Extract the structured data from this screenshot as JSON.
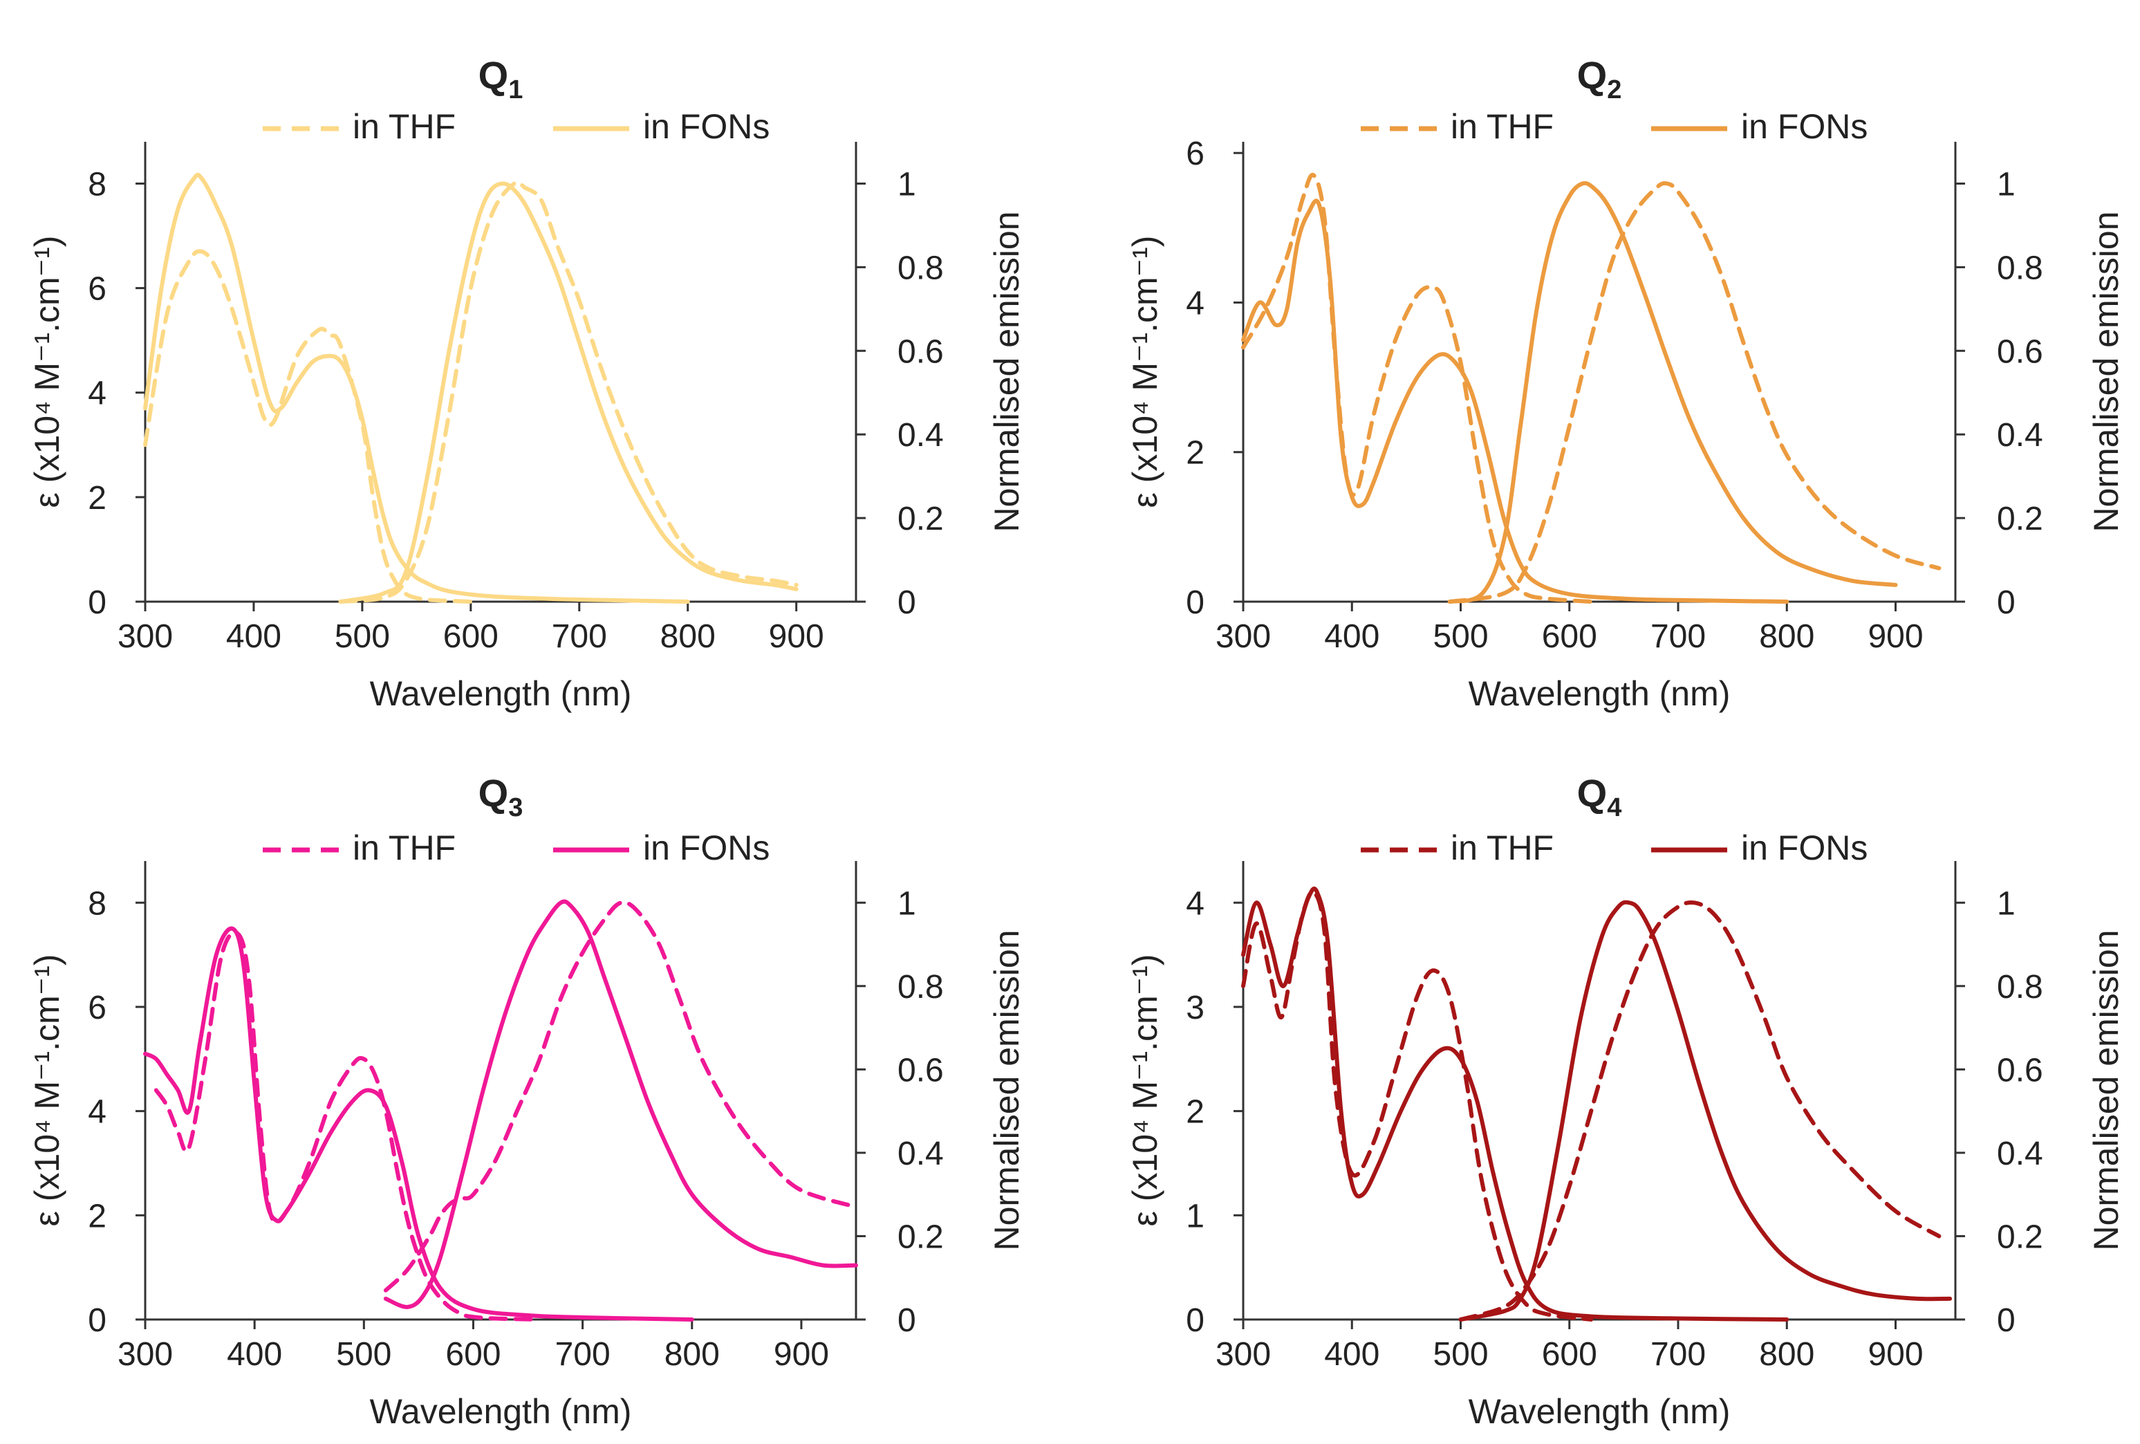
{
  "chart_data": [
    {
      "type": "line",
      "title": "Q",
      "subscript": "1",
      "color": "#fcd986",
      "xlabel": "Wavelength (nm)",
      "ylabel_left": "ε (x10⁴ M⁻¹.cm⁻¹)",
      "ylabel_right": "Normalised emission",
      "xlim": [
        300,
        955
      ],
      "ylim_left": [
        0,
        8.8
      ],
      "ylim_right": [
        0,
        1.1
      ],
      "xticks": [
        "300",
        "400",
        "500",
        "600",
        "700",
        "800",
        "900"
      ],
      "yticks_left": [
        "0",
        "2",
        "4",
        "6",
        "8"
      ],
      "yticks_right": [
        "0",
        "0.2",
        "0.4",
        "0.6",
        "0.8",
        "1"
      ],
      "legend": [
        "in THF",
        "in FONs"
      ],
      "series": [
        {
          "name": "in THF",
          "kind": "absorption",
          "style": "dashed",
          "x": [
            300,
            320,
            340,
            352,
            365,
            380,
            400,
            410,
            420,
            440,
            460,
            470,
            480,
            500,
            510,
            520,
            530,
            540,
            555,
            575,
            600
          ],
          "y": [
            3.0,
            5.5,
            6.5,
            6.7,
            6.4,
            5.6,
            4.2,
            3.5,
            3.5,
            4.7,
            5.2,
            5.1,
            4.9,
            3.4,
            2.0,
            0.9,
            0.4,
            0.15,
            0.05,
            0.02,
            0.0
          ]
        },
        {
          "name": "in FONs",
          "kind": "absorption",
          "style": "solid",
          "x": [
            300,
            315,
            330,
            345,
            352,
            365,
            380,
            400,
            415,
            425,
            440,
            455,
            470,
            480,
            490,
            500,
            510,
            520,
            530,
            545,
            560,
            580,
            620,
            680,
            750,
            800
          ],
          "y": [
            3.7,
            6.0,
            7.5,
            8.1,
            8.1,
            7.6,
            6.8,
            5.0,
            3.8,
            3.7,
            4.2,
            4.6,
            4.7,
            4.6,
            4.2,
            3.5,
            2.5,
            1.6,
            1.0,
            0.55,
            0.35,
            0.2,
            0.1,
            0.05,
            0.02,
            0.0
          ]
        },
        {
          "name": "in THF",
          "kind": "emission",
          "style": "dashed",
          "x": [
            480,
            520,
            540,
            560,
            580,
            600,
            620,
            640,
            650,
            665,
            680,
            700,
            720,
            740,
            760,
            780,
            800,
            820,
            850,
            880,
            900
          ],
          "y": [
            0.0,
            0.01,
            0.05,
            0.18,
            0.45,
            0.75,
            0.93,
            1.0,
            0.99,
            0.96,
            0.85,
            0.72,
            0.56,
            0.42,
            0.3,
            0.2,
            0.12,
            0.08,
            0.06,
            0.05,
            0.04
          ]
        },
        {
          "name": "in FONs",
          "kind": "emission",
          "style": "solid",
          "x": [
            480,
            520,
            540,
            560,
            580,
            600,
            615,
            630,
            645,
            660,
            680,
            700,
            720,
            740,
            760,
            780,
            800,
            820,
            850,
            880,
            900
          ],
          "y": [
            0.0,
            0.02,
            0.07,
            0.3,
            0.6,
            0.85,
            0.97,
            1.0,
            0.97,
            0.9,
            0.78,
            0.62,
            0.46,
            0.33,
            0.23,
            0.15,
            0.1,
            0.07,
            0.05,
            0.04,
            0.03
          ]
        }
      ]
    },
    {
      "type": "line",
      "title": "Q",
      "subscript": "2",
      "color": "#ec9b3f",
      "xlabel": "Wavelength (nm)",
      "ylabel_left": "ε (x10⁴ M⁻¹.cm⁻¹)",
      "ylabel_right": "Normalised emission",
      "xlim": [
        300,
        955
      ],
      "ylim_left": [
        0,
        6.15
      ],
      "ylim_right": [
        0,
        1.1
      ],
      "xticks": [
        "300",
        "400",
        "500",
        "600",
        "700",
        "800",
        "900"
      ],
      "yticks_left": [
        "0",
        "2",
        "4",
        "6"
      ],
      "yticks_right": [
        "0",
        "0.2",
        "0.4",
        "0.6",
        "0.8",
        "1"
      ],
      "legend": [
        "in THF",
        "in FONs"
      ],
      "series": [
        {
          "name": "in THF",
          "kind": "absorption",
          "style": "dashed",
          "x": [
            300,
            320,
            340,
            355,
            365,
            375,
            385,
            395,
            405,
            420,
            440,
            460,
            475,
            485,
            500,
            515,
            530,
            545,
            560,
            580,
            620
          ],
          "y": [
            3.4,
            3.9,
            4.6,
            5.4,
            5.7,
            5.1,
            3.2,
            1.7,
            1.5,
            2.5,
            3.5,
            4.1,
            4.2,
            4.0,
            3.2,
            1.9,
            0.8,
            0.3,
            0.1,
            0.04,
            0.0
          ]
        },
        {
          "name": "in FONs",
          "kind": "absorption",
          "style": "solid",
          "x": [
            300,
            315,
            330,
            340,
            350,
            360,
            370,
            380,
            390,
            400,
            410,
            420,
            440,
            460,
            480,
            495,
            510,
            525,
            540,
            555,
            570,
            600,
            650,
            700,
            800
          ],
          "y": [
            3.5,
            4.0,
            3.7,
            3.9,
            4.8,
            5.2,
            5.3,
            4.3,
            2.2,
            1.4,
            1.3,
            1.6,
            2.4,
            3.0,
            3.3,
            3.2,
            2.8,
            2.0,
            1.1,
            0.5,
            0.25,
            0.1,
            0.04,
            0.02,
            0.0
          ]
        },
        {
          "name": "in THF",
          "kind": "emission",
          "style": "dashed",
          "x": [
            490,
            540,
            560,
            580,
            600,
            620,
            640,
            660,
            680,
            690,
            700,
            720,
            740,
            760,
            780,
            800,
            830,
            860,
            900,
            940
          ],
          "y": [
            0.0,
            0.02,
            0.08,
            0.22,
            0.42,
            0.63,
            0.82,
            0.93,
            0.99,
            1.0,
            0.98,
            0.9,
            0.78,
            0.62,
            0.47,
            0.35,
            0.24,
            0.17,
            0.11,
            0.08
          ]
        },
        {
          "name": "in FONs",
          "kind": "emission",
          "style": "solid",
          "x": [
            490,
            520,
            540,
            555,
            570,
            585,
            600,
            612,
            622,
            635,
            650,
            670,
            690,
            710,
            730,
            760,
            790,
            820,
            860,
            900
          ],
          "y": [
            0.0,
            0.02,
            0.15,
            0.42,
            0.7,
            0.88,
            0.97,
            1.0,
            0.99,
            0.95,
            0.87,
            0.73,
            0.58,
            0.44,
            0.33,
            0.2,
            0.12,
            0.08,
            0.05,
            0.04
          ]
        }
      ]
    },
    {
      "type": "line",
      "title": "Q",
      "subscript": "3",
      "color": "#f01896",
      "xlabel": "Wavelength (nm)",
      "ylabel_left": "ε (x10⁴ M⁻¹.cm⁻¹)",
      "ylabel_right": "Normalised emission",
      "xlim": [
        300,
        950
      ],
      "ylim_left": [
        0,
        8.8
      ],
      "ylim_right": [
        0,
        1.1
      ],
      "xticks": [
        "300",
        "400",
        "500",
        "600",
        "700",
        "800",
        "900"
      ],
      "yticks_left": [
        "0",
        "2",
        "4",
        "6",
        "8"
      ],
      "yticks_right": [
        "0",
        "0.2",
        "0.4",
        "0.6",
        "0.8",
        "1"
      ],
      "legend": [
        "in THF",
        "in FONs"
      ],
      "series": [
        {
          "name": "in THF",
          "kind": "absorption",
          "style": "dashed",
          "x": [
            310,
            320,
            330,
            340,
            355,
            370,
            385,
            395,
            405,
            415,
            430,
            450,
            470,
            490,
            500,
            510,
            520,
            530,
            540,
            550,
            560,
            575,
            590,
            600,
            620,
            660
          ],
          "y": [
            4.4,
            4.1,
            3.6,
            3.3,
            5.0,
            7.0,
            7.4,
            6.5,
            3.8,
            2.0,
            2.1,
            3.0,
            4.2,
            4.9,
            5.0,
            4.7,
            4.0,
            2.9,
            1.9,
            1.2,
            0.7,
            0.3,
            0.1,
            0.05,
            0.02,
            0.0
          ]
        },
        {
          "name": "in FONs",
          "kind": "absorption",
          "style": "solid",
          "x": [
            300,
            310,
            320,
            330,
            340,
            350,
            365,
            380,
            390,
            400,
            410,
            420,
            430,
            450,
            470,
            490,
            505,
            520,
            535,
            550,
            570,
            600,
            650,
            700,
            800
          ],
          "y": [
            5.1,
            5.0,
            4.7,
            4.4,
            4.0,
            5.3,
            7.0,
            7.5,
            6.8,
            4.5,
            2.4,
            1.9,
            2.1,
            2.8,
            3.6,
            4.2,
            4.4,
            4.1,
            3.0,
            1.6,
            0.6,
            0.2,
            0.08,
            0.04,
            0.0
          ]
        },
        {
          "name": "in THF",
          "kind": "emission",
          "style": "dashed",
          "x": [
            520,
            540,
            560,
            570,
            580,
            590,
            600,
            620,
            640,
            660,
            680,
            700,
            720,
            735,
            750,
            770,
            790,
            810,
            840,
            870,
            900,
            950
          ],
          "y": [
            0.07,
            0.12,
            0.2,
            0.25,
            0.28,
            0.29,
            0.3,
            0.38,
            0.5,
            0.62,
            0.77,
            0.88,
            0.96,
            1.0,
            0.98,
            0.9,
            0.76,
            0.62,
            0.48,
            0.38,
            0.31,
            0.27
          ]
        },
        {
          "name": "in FONs",
          "kind": "emission",
          "style": "solid",
          "x": [
            520,
            540,
            555,
            570,
            590,
            610,
            630,
            650,
            665,
            680,
            690,
            705,
            720,
            740,
            760,
            780,
            800,
            830,
            860,
            890,
            920,
            950
          ],
          "y": [
            0.05,
            0.03,
            0.06,
            0.15,
            0.35,
            0.56,
            0.74,
            0.88,
            0.95,
            1.0,
            0.99,
            0.93,
            0.82,
            0.67,
            0.52,
            0.4,
            0.3,
            0.22,
            0.17,
            0.15,
            0.13,
            0.13
          ]
        }
      ]
    },
    {
      "type": "line",
      "title": "Q",
      "subscript": "4",
      "color": "#a71516",
      "xlabel": "Wavelength (nm)",
      "ylabel_left": "ε (x10⁴ M⁻¹.cm⁻¹)",
      "ylabel_right": "Normalised emission",
      "xlim": [
        300,
        955
      ],
      "ylim_left": [
        0,
        4.4
      ],
      "ylim_right": [
        0,
        1.1
      ],
      "xticks": [
        "300",
        "400",
        "500",
        "600",
        "700",
        "800",
        "900"
      ],
      "yticks_left": [
        "0",
        "1",
        "2",
        "3",
        "4"
      ],
      "yticks_right": [
        "0",
        "0.2",
        "0.4",
        "0.6",
        "0.8",
        "1"
      ],
      "legend": [
        "in THF",
        "in FONs"
      ],
      "series": [
        {
          "name": "in THF",
          "kind": "absorption",
          "style": "dashed",
          "x": [
            300,
            312,
            325,
            335,
            345,
            355,
            365,
            375,
            385,
            400,
            420,
            440,
            460,
            475,
            490,
            505,
            520,
            540,
            560,
            580,
            620
          ],
          "y": [
            3.2,
            3.8,
            3.3,
            2.9,
            3.4,
            3.9,
            4.1,
            3.7,
            2.2,
            1.4,
            1.7,
            2.4,
            3.1,
            3.35,
            3.1,
            2.3,
            1.3,
            0.5,
            0.15,
            0.05,
            0.0
          ]
        },
        {
          "name": "in FONs",
          "kind": "absorption",
          "style": "solid",
          "x": [
            300,
            312,
            325,
            337,
            350,
            360,
            368,
            378,
            390,
            400,
            410,
            425,
            445,
            465,
            485,
            500,
            515,
            530,
            545,
            560,
            580,
            620,
            700,
            800
          ],
          "y": [
            3.5,
            4.0,
            3.6,
            3.2,
            3.7,
            4.05,
            4.1,
            3.6,
            2.0,
            1.3,
            1.2,
            1.5,
            2.0,
            2.4,
            2.6,
            2.5,
            2.1,
            1.4,
            0.8,
            0.35,
            0.1,
            0.03,
            0.01,
            0.0
          ]
        },
        {
          "name": "in THF",
          "kind": "emission",
          "style": "dashed",
          "x": [
            500,
            540,
            560,
            580,
            600,
            620,
            640,
            660,
            680,
            700,
            715,
            730,
            745,
            760,
            780,
            800,
            830,
            860,
            900,
            940
          ],
          "y": [
            0.0,
            0.03,
            0.08,
            0.17,
            0.32,
            0.5,
            0.68,
            0.83,
            0.94,
            0.99,
            1.0,
            0.98,
            0.93,
            0.85,
            0.72,
            0.58,
            0.45,
            0.36,
            0.26,
            0.2
          ]
        },
        {
          "name": "in FONs",
          "kind": "emission",
          "style": "solid",
          "x": [
            500,
            540,
            555,
            570,
            590,
            610,
            630,
            645,
            655,
            665,
            680,
            700,
            720,
            740,
            760,
            790,
            820,
            850,
            880,
            920,
            950
          ],
          "y": [
            0.0,
            0.02,
            0.05,
            0.15,
            0.42,
            0.72,
            0.92,
            0.99,
            1.0,
            0.98,
            0.9,
            0.74,
            0.56,
            0.4,
            0.28,
            0.17,
            0.11,
            0.08,
            0.06,
            0.05,
            0.05
          ]
        }
      ]
    }
  ]
}
